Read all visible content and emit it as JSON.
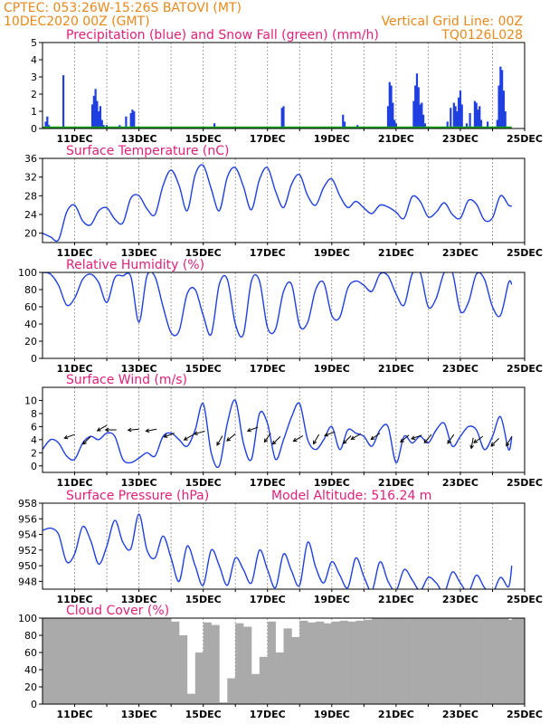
{
  "header": {
    "line1_left": "CPTEC:  053:26W-15:26S  BATOVI (MT)",
    "line2_left": "10DEC2020 00Z (GMT)",
    "line1_right": "Vertical Grid Line: 00Z",
    "line2_right": "TQ0126L028"
  },
  "colors": {
    "header": "#e8891c",
    "title": "#e0207a",
    "line": "#1f3fe0",
    "snow": "#1aa01a",
    "cloud": "#aaaaaa",
    "grid": "#888888"
  },
  "x_ticks": [
    "11DEC",
    "13DEC",
    "15DEC",
    "17DEC",
    "19DEC",
    "21DEC",
    "23DEC",
    "25DEC"
  ],
  "chart_data": [
    {
      "id": "precip",
      "type": "bar",
      "title": "Precipitation (blue) and Snow Fall (green) (mm/h)",
      "ylim": [
        0,
        5
      ],
      "yticks": [
        0,
        1,
        2,
        3,
        4,
        5
      ],
      "x_unit": "days since 10DEC2020 00Z",
      "series": [
        {
          "name": "Precipitation",
          "x": [
            0.1,
            0.15,
            0.2,
            0.65,
            1.55,
            1.6,
            1.65,
            1.7,
            1.75,
            1.8,
            1.85,
            1.9,
            2.0,
            2.2,
            2.4,
            2.6,
            2.75,
            2.8,
            2.85,
            3.0,
            5.35,
            7.45,
            7.5,
            9.35,
            9.4,
            9.8,
            10.75,
            10.8,
            10.85,
            10.9,
            10.95,
            11.0,
            11.55,
            11.6,
            11.65,
            11.7,
            11.75,
            11.8,
            11.85,
            11.9,
            12.6,
            12.7,
            12.8,
            12.85,
            12.9,
            12.95,
            13.0,
            13.05,
            13.2,
            13.3,
            13.45,
            13.5,
            13.55,
            13.6,
            13.65,
            13.85,
            13.9,
            14.15,
            14.2,
            14.25,
            14.3,
            14.35,
            14.4
          ],
          "values": [
            0.4,
            0.7,
            0.2,
            3.1,
            1.4,
            1.9,
            2.3,
            1.6,
            1.0,
            1.3,
            0.5,
            0.2,
            0.2,
            0.1,
            0.2,
            0.7,
            0.9,
            1.1,
            1.0,
            0.1,
            0.3,
            1.2,
            1.3,
            0.8,
            0.4,
            0.2,
            1.3,
            2.7,
            2.5,
            1.5,
            0.5,
            0.3,
            1.6,
            2.5,
            3.2,
            2.4,
            1.4,
            1.5,
            0.8,
            0.3,
            0.4,
            1.2,
            1.5,
            1.3,
            1.0,
            1.8,
            2.2,
            1.4,
            0.3,
            0.9,
            1.6,
            1.5,
            1.1,
            1.3,
            0.5,
            0.4,
            0.1,
            0.5,
            2.5,
            3.6,
            3.4,
            2.2,
            1.0
          ]
        },
        {
          "name": "Snow Fall",
          "x": [
            0,
            14.6
          ],
          "values": [
            0,
            0
          ]
        }
      ]
    },
    {
      "id": "temp",
      "type": "line",
      "title": "Surface Temperature (nC)",
      "ylim": [
        18,
        36
      ],
      "yticks": [
        20,
        24,
        28,
        32,
        36
      ],
      "x_unit": "days since 10DEC2020 00Z",
      "series": [
        {
          "name": "Surface Temperature",
          "x": [
            0,
            0.25,
            0.5,
            0.75,
            1.0,
            1.25,
            1.5,
            1.75,
            2.0,
            2.25,
            2.5,
            2.75,
            3.0,
            3.25,
            3.5,
            3.75,
            4.0,
            4.25,
            4.5,
            4.75,
            5.0,
            5.25,
            5.5,
            5.75,
            6.0,
            6.25,
            6.5,
            6.75,
            7.0,
            7.25,
            7.5,
            7.75,
            8.0,
            8.25,
            8.5,
            8.75,
            9.0,
            9.25,
            9.5,
            9.75,
            10.0,
            10.25,
            10.5,
            10.75,
            11.0,
            11.25,
            11.5,
            11.75,
            12.0,
            12.25,
            12.5,
            12.75,
            13.0,
            13.25,
            13.5,
            13.75,
            14.0,
            14.25,
            14.5,
            14.6
          ],
          "values": [
            20,
            19.2,
            18.6,
            24.5,
            26,
            22.6,
            21.8,
            24.8,
            25.4,
            23,
            22.2,
            27.5,
            28,
            25.2,
            24,
            30.2,
            33.5,
            30.2,
            24.8,
            32.5,
            34.5,
            29.5,
            24.8,
            32,
            34,
            30,
            25,
            31.5,
            34,
            29,
            25.5,
            30.5,
            32.5,
            28,
            26,
            29.8,
            31.6,
            28,
            25.5,
            26.8,
            25.4,
            24.2,
            26,
            25.6,
            24.5,
            23.2,
            27.8,
            26.8,
            23.5,
            24.5,
            26.5,
            24,
            23.2,
            27,
            26.2,
            22.8,
            23.3,
            28,
            26,
            25.8
          ]
        }
      ]
    },
    {
      "id": "rh",
      "type": "line",
      "title": "Relative Humidity (%)",
      "ylim": [
        0,
        100
      ],
      "yticks": [
        0,
        20,
        40,
        60,
        80,
        100
      ],
      "x_unit": "days since 10DEC2020 00Z",
      "series": [
        {
          "name": "Relative Humidity",
          "x": [
            0,
            0.25,
            0.5,
            0.75,
            1.0,
            1.25,
            1.5,
            1.75,
            2.0,
            2.25,
            2.5,
            2.75,
            3.0,
            3.25,
            3.5,
            3.75,
            4.0,
            4.25,
            4.5,
            4.75,
            5.0,
            5.25,
            5.5,
            5.75,
            6.0,
            6.25,
            6.5,
            6.75,
            7.0,
            7.25,
            7.5,
            7.75,
            8.0,
            8.25,
            8.5,
            8.75,
            9.0,
            9.25,
            9.5,
            9.75,
            10.0,
            10.25,
            10.5,
            10.75,
            11.0,
            11.25,
            11.5,
            11.75,
            12.0,
            12.25,
            12.5,
            12.75,
            13.0,
            13.25,
            13.5,
            13.75,
            14.0,
            14.25,
            14.5,
            14.6
          ],
          "values": [
            100,
            98,
            85,
            62,
            70,
            92,
            98,
            88,
            65,
            94,
            96,
            95,
            42,
            96,
            95,
            60,
            30,
            32,
            75,
            80,
            50,
            28,
            86,
            92,
            40,
            28,
            90,
            90,
            36,
            34,
            78,
            86,
            38,
            42,
            80,
            88,
            50,
            48,
            82,
            90,
            85,
            78,
            98,
            96,
            75,
            62,
            98,
            100,
            60,
            70,
            100,
            100,
            55,
            65,
            98,
            92,
            60,
            50,
            88,
            86
          ]
        }
      ]
    },
    {
      "id": "wind",
      "type": "line",
      "title": "Surface Wind (m/s)",
      "ylim": [
        -1,
        12
      ],
      "yticks": [
        0,
        2,
        4,
        6,
        8,
        10
      ],
      "x_unit": "days since 10DEC2020 00Z",
      "series": [
        {
          "name": "Surface Wind",
          "x": [
            0,
            0.25,
            0.5,
            0.75,
            1.0,
            1.25,
            1.5,
            1.75,
            2.0,
            2.25,
            2.5,
            2.75,
            3.0,
            3.25,
            3.5,
            3.75,
            4.0,
            4.25,
            4.5,
            4.75,
            5.0,
            5.25,
            5.5,
            5.75,
            6.0,
            6.25,
            6.5,
            6.75,
            7.0,
            7.25,
            7.5,
            7.75,
            8.0,
            8.25,
            8.5,
            8.75,
            9.0,
            9.25,
            9.5,
            9.75,
            10.0,
            10.25,
            10.5,
            10.75,
            11.0,
            11.25,
            11.5,
            11.75,
            12.0,
            12.25,
            12.5,
            12.75,
            13.0,
            13.25,
            13.5,
            13.75,
            14.0,
            14.25,
            14.5,
            14.6
          ],
          "values": [
            2.5,
            4,
            3.5,
            1.5,
            1,
            3.5,
            4.5,
            4,
            5,
            4.5,
            1,
            0.5,
            1.2,
            2,
            1.5,
            4.5,
            5,
            4,
            3,
            5.5,
            9.5,
            2,
            0,
            6.5,
            10,
            3.5,
            1,
            8,
            6.5,
            1,
            4,
            7.5,
            9.5,
            4,
            2.5,
            4,
            6,
            2.5,
            5.5,
            5,
            4.5,
            3,
            5.5,
            6,
            0.5,
            4.5,
            3.5,
            4.5,
            3.5,
            5.5,
            6.5,
            3,
            4.5,
            6,
            5.5,
            2.5,
            4.5,
            7.5,
            2.5,
            4.5
          ]
        }
      ],
      "arrows": {
        "x": [
          1.0,
          1.5,
          2.0,
          2.3,
          3.0,
          3.55,
          4.1,
          4.7,
          5.05,
          5.6,
          6.0,
          6.7,
          7.1,
          7.4,
          8.1,
          8.6,
          9.1,
          9.6,
          9.9,
          10.5,
          11.4,
          11.8,
          12.1,
          12.8,
          13.4,
          13.7,
          14.2,
          14.6
        ],
        "y": [
          4.8,
          4.5,
          6.2,
          5.5,
          5.6,
          5.6,
          5.0,
          4.8,
          5.3,
          4.6,
          4.9,
          5.9,
          5.0,
          4.5,
          4.6,
          4.8,
          5.2,
          4.6,
          4.9,
          5.0,
          4.7,
          4.7,
          4.8,
          4.8,
          4.3,
          4.5,
          4.2,
          4.5
        ],
        "angle_deg": [
          200,
          225,
          210,
          180,
          185,
          190,
          200,
          210,
          195,
          240,
          220,
          200,
          235,
          225,
          210,
          240,
          200,
          225,
          210,
          215,
          220,
          200,
          230,
          235,
          260,
          215,
          225,
          240
        ]
      }
    },
    {
      "id": "pres",
      "type": "line",
      "title": "Surface Pressure (hPa)",
      "subtitle": "Model Altitude: 516.24 m",
      "ylim": [
        947,
        958
      ],
      "yticks": [
        948,
        950,
        952,
        954,
        956,
        958
      ],
      "x_unit": "days since 10DEC2020 00Z",
      "series": [
        {
          "name": "Surface Pressure",
          "x": [
            0,
            0.25,
            0.5,
            0.75,
            1.0,
            1.25,
            1.5,
            1.75,
            2.0,
            2.25,
            2.5,
            2.75,
            3.0,
            3.25,
            3.5,
            3.75,
            4.0,
            4.25,
            4.5,
            4.75,
            5.0,
            5.25,
            5.5,
            5.75,
            6.0,
            6.25,
            6.5,
            6.75,
            7.0,
            7.25,
            7.5,
            7.75,
            8.0,
            8.25,
            8.5,
            8.75,
            9.0,
            9.25,
            9.5,
            9.75,
            10.0,
            10.25,
            10.5,
            10.75,
            11.0,
            11.25,
            11.5,
            11.75,
            12.0,
            12.25,
            12.5,
            12.75,
            13.0,
            13.25,
            13.5,
            13.75,
            14.0,
            14.25,
            14.5,
            14.6
          ],
          "values": [
            954.5,
            954.8,
            954,
            950.5,
            951.5,
            955,
            953.2,
            950.2,
            952.5,
            955.8,
            953,
            952.2,
            956.6,
            952,
            951,
            953.8,
            951,
            948,
            952.5,
            950,
            947.5,
            952,
            950,
            947.5,
            951,
            949.5,
            947.8,
            952,
            949.5,
            947.2,
            951.5,
            949.3,
            947.5,
            953,
            949.8,
            947.8,
            950.5,
            948.8,
            947.2,
            951,
            948.6,
            946.8,
            950.5,
            948,
            946.8,
            949.5,
            948.2,
            946.8,
            948.5,
            947.8,
            946.6,
            949.2,
            947.8,
            946.6,
            948.8,
            947.2,
            946.5,
            948.5,
            947.3,
            950
          ]
        }
      ]
    },
    {
      "id": "cloud",
      "type": "bar",
      "title": "Cloud Cover (%)",
      "ylim": [
        0,
        100
      ],
      "yticks": [
        0,
        20,
        40,
        60,
        80,
        100
      ],
      "x_unit": "days since 10DEC2020 00Z",
      "series": [
        {
          "name": "Cloud Cover",
          "x": [
            0,
            0.25,
            0.5,
            0.75,
            1.0,
            1.25,
            1.5,
            1.75,
            2.0,
            2.25,
            2.5,
            2.75,
            3.0,
            3.25,
            3.5,
            3.75,
            4.0,
            4.25,
            4.5,
            4.75,
            5.0,
            5.25,
            5.5,
            5.75,
            6.0,
            6.25,
            6.5,
            6.75,
            7.0,
            7.25,
            7.5,
            7.75,
            8.0,
            8.25,
            8.5,
            8.75,
            9.0,
            9.25,
            9.5,
            9.75,
            10.0,
            10.25,
            10.5,
            10.75,
            11.0,
            11.25,
            11.5,
            11.75,
            12.0,
            12.25,
            12.5,
            12.75,
            13.0,
            13.25,
            13.5,
            13.75,
            14.0,
            14.25,
            14.5,
            14.6
          ],
          "values": [
            100,
            100,
            100,
            100,
            100,
            100,
            100,
            100,
            100,
            100,
            100,
            100,
            100,
            100,
            100,
            100,
            96,
            80,
            12,
            60,
            95,
            92,
            2,
            30,
            94,
            90,
            35,
            55,
            96,
            60,
            88,
            78,
            97,
            95,
            96,
            94,
            96,
            97,
            96,
            97,
            98,
            100,
            100,
            100,
            100,
            100,
            100,
            100,
            100,
            100,
            100,
            100,
            100,
            100,
            100,
            100,
            100,
            100,
            98,
            100
          ]
        }
      ]
    }
  ]
}
